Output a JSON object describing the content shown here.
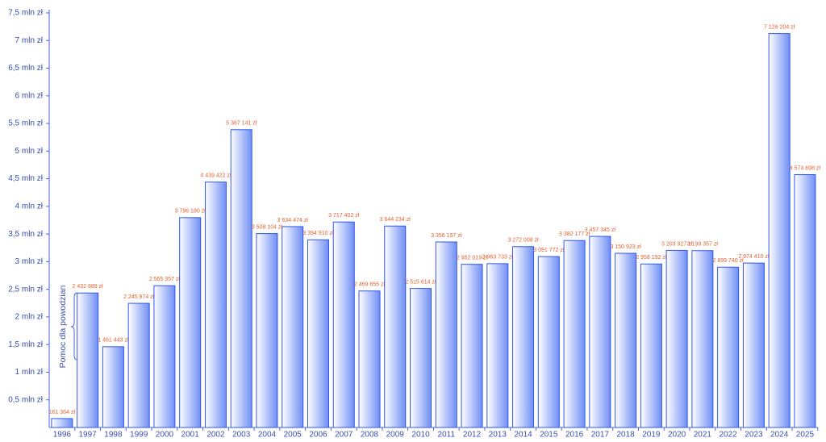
{
  "chart_data": {
    "type": "bar",
    "categories": [
      "1996",
      "1997",
      "1998",
      "1999",
      "2000",
      "2001",
      "2002",
      "2003",
      "2004",
      "2005",
      "2006",
      "2007",
      "2008",
      "2009",
      "2010",
      "2011",
      "2012",
      "2013",
      "2014",
      "2015",
      "2016",
      "2017",
      "2018",
      "2019",
      "2020",
      "2021",
      "2022",
      "2023",
      "2024",
      "2025"
    ],
    "values": [
      161364,
      2432889,
      1461443,
      2245974,
      2565357,
      3796180,
      4439422,
      5387141,
      3508104,
      3634474,
      3394910,
      3717402,
      2469655,
      3644234,
      2515614,
      3356157,
      2952019,
      2963733,
      3272008,
      3091772,
      3382177,
      3457345,
      3150923,
      2958192,
      3203927,
      3199357,
      2899740,
      2974410,
      7126204,
      4574698
    ],
    "value_labels": [
      "161 364 zł",
      "2 432 889 zł",
      "1 461 443 zł",
      "2 245 974 zł",
      "2 565 357 zł",
      "3 796 180 zł",
      "4 439 422 zł",
      "5 387 141 zł",
      "3 508 104 zł",
      "3 634 474 zł",
      "3 394 910 zł",
      "3 717 402 zł",
      "2 469 655 zł",
      "3 644 234 zł",
      "2  515 614 zł",
      "3 356 157 zł",
      "2 952 019 zł",
      "2 963 733 zł",
      "3 272 008 zł",
      "3 091 772 zł",
      "3 382 177 zł",
      "3 457 345 zł",
      "3 150 923 zł",
      "2 958 192 zł",
      "3 203 927 zł",
      "3 199 357 zł",
      "2 899 740 zł",
      "2 974 410 zł",
      "7 126 204 zł",
      "4 574 698 zł"
    ],
    "color": "#6f8ff5",
    "ylim": [
      0,
      7500000
    ],
    "yticks": [
      {
        "value": 500000,
        "label": "0,5 mln zł"
      },
      {
        "value": 1000000,
        "label": "1 mln zł"
      },
      {
        "value": 1500000,
        "label": "1,5 mln zł"
      },
      {
        "value": 2000000,
        "label": "2 mln zł"
      },
      {
        "value": 2500000,
        "label": "2,5 mln zł"
      },
      {
        "value": 3000000,
        "label": "3 mln zł"
      },
      {
        "value": 3500000,
        "label": "3,5 mln zł"
      },
      {
        "value": 4000000,
        "label": "4 mln zł"
      },
      {
        "value": 4500000,
        "label": "4,5 mln zł"
      },
      {
        "value": 5000000,
        "label": "5 mln zł"
      },
      {
        "value": 5500000,
        "label": "5,5 mln zł"
      },
      {
        "value": 6000000,
        "label": "6 mln zł"
      },
      {
        "value": 6500000,
        "label": "6,5 mln zł"
      },
      {
        "value": 7000000,
        "label": "7 mln zł"
      },
      {
        "value": 7500000,
        "label": "7,5 mln zł"
      }
    ],
    "annotation": "Pomoc dla powodzian"
  }
}
